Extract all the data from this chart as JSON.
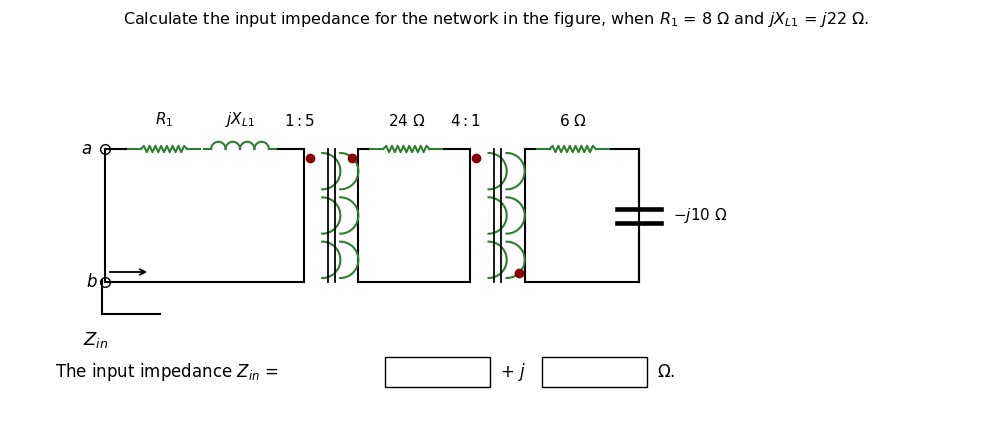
{
  "background_color": "#ffffff",
  "figsize": [
    9.93,
    4.24
  ],
  "dpi": 100,
  "wire_color": "#000000",
  "resistor_color": "#2e7d32",
  "inductor_color": "#2e7d32",
  "transformer_color": "#2e7d32",
  "dot_color": "#8B0000",
  "wire_y": 2.75,
  "bot_y": 1.42,
  "xlim": [
    0,
    9.93
  ],
  "ylim": [
    0,
    4.24
  ],
  "lw": 1.5
}
